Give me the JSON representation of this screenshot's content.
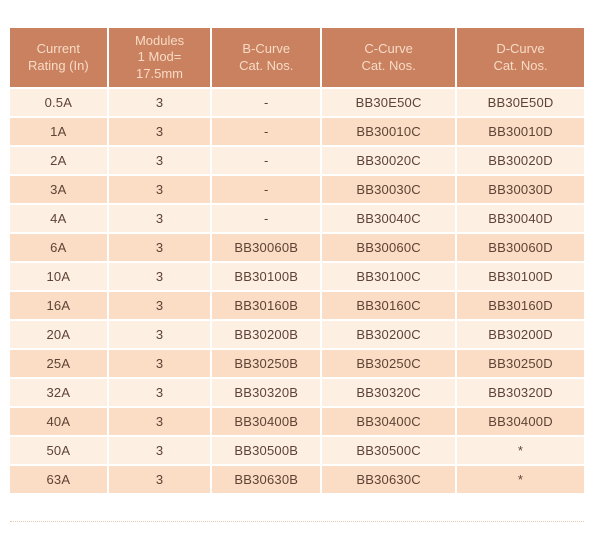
{
  "colors": {
    "page_bg": "#ffffff",
    "header_bg": "#c9815f",
    "header_text": "#f7dbc6",
    "row_light": "#fdefe2",
    "row_dark": "#fbdcc4",
    "cell_text": "#5e4336",
    "rule_color": "#e9cbb2"
  },
  "table": {
    "columns": [
      "Current\nRating (In)",
      "Modules\n1 Mod=\n17.5mm",
      "B-Curve\nCat. Nos.",
      "C-Curve\nCat. Nos.",
      "D-Curve\nCat. Nos."
    ],
    "rows": [
      [
        "0.5A",
        "3",
        "-",
        "BB30E50C",
        "BB30E50D"
      ],
      [
        "1A",
        "3",
        "-",
        "BB30010C",
        "BB30010D"
      ],
      [
        "2A",
        "3",
        "-",
        "BB30020C",
        "BB30020D"
      ],
      [
        "3A",
        "3",
        "-",
        "BB30030C",
        "BB30030D"
      ],
      [
        "4A",
        "3",
        "-",
        "BB30040C",
        "BB30040D"
      ],
      [
        "6A",
        "3",
        "BB30060B",
        "BB30060C",
        "BB30060D"
      ],
      [
        "10A",
        "3",
        "BB30100B",
        "BB30100C",
        "BB30100D"
      ],
      [
        "16A",
        "3",
        "BB30160B",
        "BB30160C",
        "BB30160D"
      ],
      [
        "20A",
        "3",
        "BB30200B",
        "BB30200C",
        "BB30200D"
      ],
      [
        "25A",
        "3",
        "BB30250B",
        "BB30250C",
        "BB30250D"
      ],
      [
        "32A",
        "3",
        "BB30320B",
        "BB30320C",
        "BB30320D"
      ],
      [
        "40A",
        "3",
        "BB30400B",
        "BB30400C",
        "BB30400D"
      ],
      [
        "50A",
        "3",
        "BB30500B",
        "BB30500C",
        "*"
      ],
      [
        "63A",
        "3",
        "BB30630B",
        "BB30630C",
        "*"
      ]
    ]
  }
}
